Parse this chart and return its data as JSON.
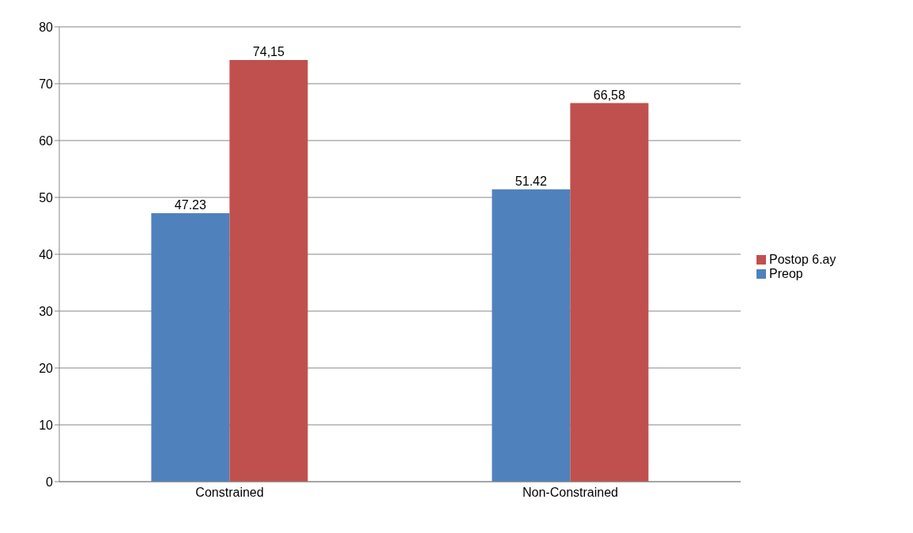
{
  "chart_data": {
    "type": "bar",
    "categories": [
      "Constrained",
      "Non-Constrained"
    ],
    "series": [
      {
        "name": "Preop",
        "color": "#4f81bd",
        "values": [
          47.23,
          51.42
        ],
        "value_labels": [
          "47.23",
          "51.42"
        ]
      },
      {
        "name": "Postop 6.ay",
        "color": "#c0504d",
        "values": [
          74.15,
          66.58
        ],
        "value_labels": [
          "74,15",
          "66,58"
        ]
      }
    ],
    "ylim": [
      0,
      80
    ],
    "yticks": [
      0,
      10,
      20,
      30,
      40,
      50,
      60,
      70,
      80
    ],
    "grid": "y",
    "legend": "right"
  }
}
